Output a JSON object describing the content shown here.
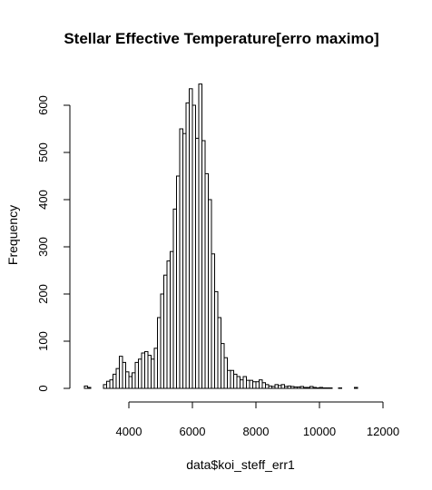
{
  "chart_data": {
    "type": "bar",
    "title": "Stellar Effective Temperature[erro maximo]",
    "xlabel": "data$koi_steff_err1",
    "ylabel": "Frequency",
    "xlim": [
      2400,
      12000
    ],
    "ylim": [
      0,
      640
    ],
    "xticks": [
      4000,
      6000,
      8000,
      10000,
      12000
    ],
    "yticks": [
      0,
      100,
      200,
      300,
      400,
      500,
      600
    ],
    "bin_width": 100,
    "bins": [
      [
        2600,
        5
      ],
      [
        2700,
        2
      ],
      [
        3200,
        8
      ],
      [
        3300,
        15
      ],
      [
        3400,
        18
      ],
      [
        3500,
        30
      ],
      [
        3600,
        42
      ],
      [
        3700,
        68
      ],
      [
        3800,
        55
      ],
      [
        3900,
        35
      ],
      [
        4000,
        25
      ],
      [
        4100,
        33
      ],
      [
        4200,
        55
      ],
      [
        4300,
        62
      ],
      [
        4400,
        75
      ],
      [
        4500,
        78
      ],
      [
        4600,
        70
      ],
      [
        4700,
        62
      ],
      [
        4800,
        85
      ],
      [
        4900,
        150
      ],
      [
        5000,
        200
      ],
      [
        5100,
        240
      ],
      [
        5200,
        270
      ],
      [
        5300,
        290
      ],
      [
        5400,
        380
      ],
      [
        5500,
        450
      ],
      [
        5600,
        550
      ],
      [
        5700,
        540
      ],
      [
        5800,
        605
      ],
      [
        5900,
        635
      ],
      [
        6000,
        600
      ],
      [
        6100,
        530
      ],
      [
        6200,
        645
      ],
      [
        6300,
        525
      ],
      [
        6400,
        455
      ],
      [
        6500,
        400
      ],
      [
        6600,
        285
      ],
      [
        6700,
        205
      ],
      [
        6800,
        150
      ],
      [
        6900,
        95
      ],
      [
        7000,
        65
      ],
      [
        7100,
        38
      ],
      [
        7200,
        38
      ],
      [
        7300,
        30
      ],
      [
        7400,
        25
      ],
      [
        7500,
        18
      ],
      [
        7600,
        25
      ],
      [
        7700,
        17
      ],
      [
        7800,
        17
      ],
      [
        7900,
        14
      ],
      [
        8000,
        14
      ],
      [
        8100,
        18
      ],
      [
        8200,
        12
      ],
      [
        8300,
        8
      ],
      [
        8400,
        5
      ],
      [
        8500,
        4
      ],
      [
        8600,
        8
      ],
      [
        8700,
        6
      ],
      [
        8800,
        8
      ],
      [
        8900,
        4
      ],
      [
        9000,
        5
      ],
      [
        9100,
        4
      ],
      [
        9200,
        3
      ],
      [
        9300,
        3
      ],
      [
        9400,
        4
      ],
      [
        9500,
        2
      ],
      [
        9600,
        2
      ],
      [
        9700,
        4
      ],
      [
        9800,
        2
      ],
      [
        9900,
        1
      ],
      [
        10000,
        2
      ],
      [
        10100,
        1
      ],
      [
        10200,
        1
      ],
      [
        10300,
        1
      ],
      [
        10600,
        1
      ],
      [
        11100,
        2
      ]
    ],
    "grid": false,
    "legend": "none"
  }
}
